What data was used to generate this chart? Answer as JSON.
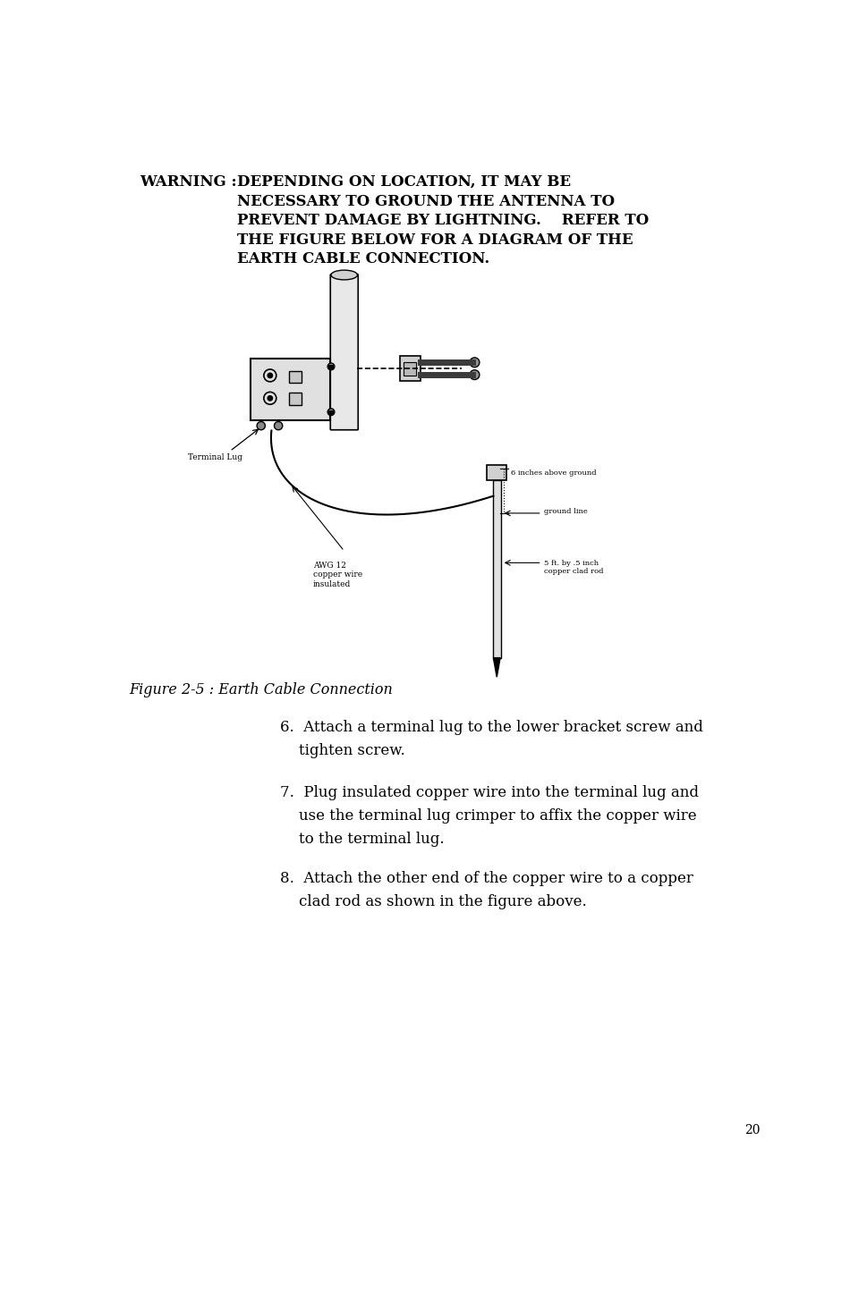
{
  "bg_color": "#ffffff",
  "page_number": "20",
  "warning_label": "WARNING :",
  "warning_text_line1": "DEPENDING ON LOCATION, IT MAY BE",
  "warning_text_line2": "NECESSARY TO GROUND THE ANTENNA TO",
  "warning_text_line3": "PREVENT DAMAGE BY LIGHTNING.    REFER TO",
  "warning_text_line4": "THE FIGURE BELOW FOR A DIAGRAM OF THE",
  "warning_text_line5": "EARTH CABLE CONNECTION.",
  "figure_caption": "Figure 2-5 : Earth Cable Connection",
  "label_terminal_lug": "Terminal Lug",
  "label_awg12": "AWG 12\ncopper wire\ninsulated",
  "label_6inches": "6 inches above ground",
  "label_ground_line": "ground line",
  "label_copper_rod": "5 ft. by .5 inch\ncopper clad rod",
  "step6": "6.  Attach a terminal lug to the lower bracket screw and\n    tighten screw.",
  "step7": "7.  Plug insulated copper wire into the terminal lug and\n    use the terminal lug crimper to affix the copper wire\n    to the terminal lug.",
  "step8": "8.  Attach the other end of the copper wire to a copper\n    clad rod as shown in the figure above.",
  "text_color": "#000000"
}
